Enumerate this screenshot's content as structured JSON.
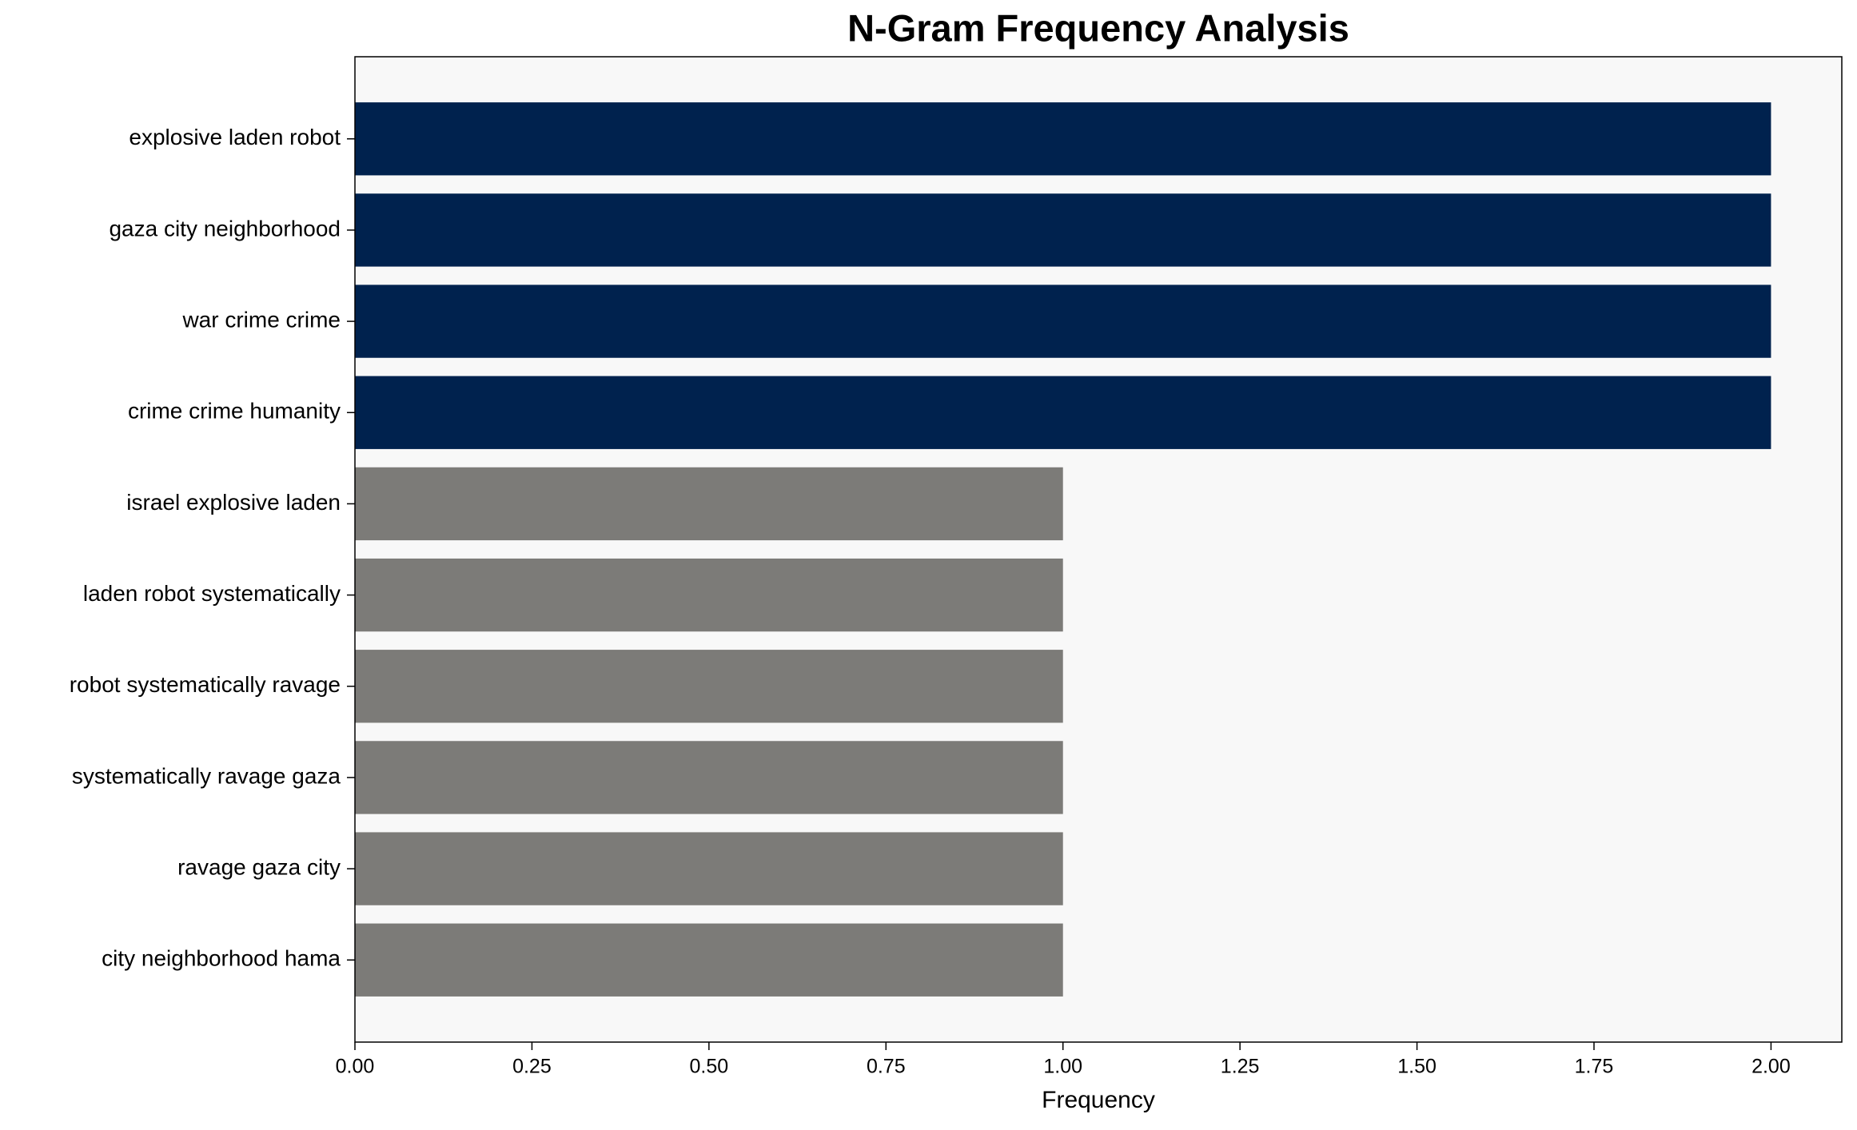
{
  "chart_data": {
    "type": "barh",
    "title": "N-Gram Frequency Analysis",
    "x_label": "Frequency",
    "categories": [
      "explosive laden robot",
      "gaza city neighborhood",
      "war crime crime",
      "crime crime humanity",
      "israel explosive laden",
      "laden robot systematically",
      "robot systematically ravage",
      "systematically ravage gaza",
      "ravage gaza city",
      "city neighborhood hama"
    ],
    "values": [
      2,
      2,
      2,
      2,
      1,
      1,
      1,
      1,
      1,
      1
    ],
    "colors": [
      "#00224e",
      "#00224e",
      "#00224e",
      "#00224e",
      "#7c7b78",
      "#7c7b78",
      "#7c7b78",
      "#7c7b78",
      "#7c7b78",
      "#7c7b78"
    ],
    "xlim": [
      0,
      2.1
    ],
    "xticks": [
      {
        "value": 0,
        "label": "0.00"
      },
      {
        "value": 0.25,
        "label": "0.25"
      },
      {
        "value": 0.5,
        "label": "0.50"
      },
      {
        "value": 0.75,
        "label": "0.75"
      },
      {
        "value": 1,
        "label": "1.00"
      },
      {
        "value": 1.25,
        "label": "1.25"
      },
      {
        "value": 1.5,
        "label": "1.50"
      },
      {
        "value": 1.75,
        "label": "1.75"
      },
      {
        "value": 2,
        "label": "2.00"
      }
    ],
    "plot_background": "#f8f8f8",
    "grid": false
  }
}
